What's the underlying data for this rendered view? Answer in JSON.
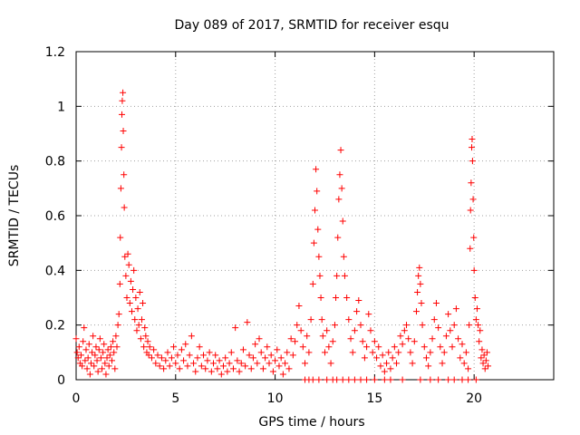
{
  "chart_data": {
    "type": "scatter",
    "title": "Day 089 of 2017, SRMTID for receiver esqu",
    "xlabel": "GPS time / hours",
    "ylabel": "SRMTID / TECUs",
    "xlim": [
      0,
      24
    ],
    "ylim": [
      0,
      1.2
    ],
    "xticks": [
      0,
      5,
      10,
      15,
      20
    ],
    "xtick_labels": [
      "0",
      "5",
      "10",
      "15",
      "20"
    ],
    "yticks": [
      0,
      0.2,
      0.4,
      0.6,
      0.8,
      1.0,
      1.2
    ],
    "ytick_labels": [
      "0",
      "0.2",
      "0.4",
      "0.6",
      "0.8",
      "1",
      "1.2"
    ],
    "grid": true,
    "marker": "+",
    "color": "#ff0000",
    "series": [
      {
        "name": "SRMTID",
        "points": [
          [
            0.0,
            0.15
          ],
          [
            0.05,
            0.1
          ],
          [
            0.1,
            0.08
          ],
          [
            0.15,
            0.12
          ],
          [
            0.2,
            0.06
          ],
          [
            0.25,
            0.09
          ],
          [
            0.3,
            0.05
          ],
          [
            0.35,
            0.14
          ],
          [
            0.4,
            0.19
          ],
          [
            0.45,
            0.07
          ],
          [
            0.5,
            0.11
          ],
          [
            0.55,
            0.04
          ],
          [
            0.6,
            0.08
          ],
          [
            0.65,
            0.13
          ],
          [
            0.7,
            0.02
          ],
          [
            0.75,
            0.06
          ],
          [
            0.8,
            0.1
          ],
          [
            0.85,
            0.16
          ],
          [
            0.9,
            0.05
          ],
          [
            0.95,
            0.09
          ],
          [
            1.0,
            0.12
          ],
          [
            1.05,
            0.07
          ],
          [
            1.1,
            0.03
          ],
          [
            1.15,
            0.11
          ],
          [
            1.2,
            0.15
          ],
          [
            1.25,
            0.08
          ],
          [
            1.3,
            0.04
          ],
          [
            1.35,
            0.1
          ],
          [
            1.4,
            0.13
          ],
          [
            1.45,
            0.06
          ],
          [
            1.5,
            0.02
          ],
          [
            1.55,
            0.08
          ],
          [
            1.6,
            0.11
          ],
          [
            1.65,
            0.05
          ],
          [
            1.7,
            0.09
          ],
          [
            1.75,
            0.12
          ],
          [
            1.8,
            0.07
          ],
          [
            1.85,
            0.14
          ],
          [
            1.9,
            0.1
          ],
          [
            1.95,
            0.04
          ],
          [
            2.0,
            0.16
          ],
          [
            2.05,
            0.12
          ],
          [
            2.1,
            0.2
          ],
          [
            2.15,
            0.24
          ],
          [
            2.2,
            0.35
          ],
          [
            2.22,
            0.52
          ],
          [
            2.25,
            0.7
          ],
          [
            2.28,
            0.85
          ],
          [
            2.3,
            0.97
          ],
          [
            2.32,
            1.02
          ],
          [
            2.35,
            1.05
          ],
          [
            2.37,
            0.91
          ],
          [
            2.4,
            0.75
          ],
          [
            2.42,
            0.63
          ],
          [
            2.45,
            0.45
          ],
          [
            2.5,
            0.38
          ],
          [
            2.55,
            0.3
          ],
          [
            2.6,
            0.46
          ],
          [
            2.65,
            0.42
          ],
          [
            2.7,
            0.28
          ],
          [
            2.75,
            0.36
          ],
          [
            2.8,
            0.25
          ],
          [
            2.85,
            0.33
          ],
          [
            2.9,
            0.4
          ],
          [
            2.95,
            0.22
          ],
          [
            3.0,
            0.3
          ],
          [
            3.05,
            0.18
          ],
          [
            3.1,
            0.26
          ],
          [
            3.15,
            0.2
          ],
          [
            3.2,
            0.32
          ],
          [
            3.25,
            0.15
          ],
          [
            3.3,
            0.22
          ],
          [
            3.35,
            0.28
          ],
          [
            3.4,
            0.12
          ],
          [
            3.45,
            0.19
          ],
          [
            3.5,
            0.16
          ],
          [
            3.55,
            0.1
          ],
          [
            3.6,
            0.14
          ],
          [
            3.65,
            0.09
          ],
          [
            3.7,
            0.12
          ],
          [
            3.8,
            0.08
          ],
          [
            3.9,
            0.11
          ],
          [
            4.0,
            0.06
          ],
          [
            4.1,
            0.09
          ],
          [
            4.2,
            0.05
          ],
          [
            4.3,
            0.08
          ],
          [
            4.4,
            0.04
          ],
          [
            4.5,
            0.07
          ],
          [
            4.6,
            0.1
          ],
          [
            4.7,
            0.05
          ],
          [
            4.8,
            0.08
          ],
          [
            4.9,
            0.12
          ],
          [
            5.0,
            0.06
          ],
          [
            5.1,
            0.09
          ],
          [
            5.2,
            0.04
          ],
          [
            5.3,
            0.11
          ],
          [
            5.4,
            0.07
          ],
          [
            5.5,
            0.13
          ],
          [
            5.6,
            0.05
          ],
          [
            5.7,
            0.09
          ],
          [
            5.8,
            0.16
          ],
          [
            5.9,
            0.06
          ],
          [
            6.0,
            0.03
          ],
          [
            6.1,
            0.08
          ],
          [
            6.2,
            0.12
          ],
          [
            6.3,
            0.05
          ],
          [
            6.4,
            0.09
          ],
          [
            6.5,
            0.04
          ],
          [
            6.6,
            0.07
          ],
          [
            6.7,
            0.1
          ],
          [
            6.8,
            0.03
          ],
          [
            6.9,
            0.06
          ],
          [
            7.0,
            0.09
          ],
          [
            7.1,
            0.04
          ],
          [
            7.2,
            0.07
          ],
          [
            7.3,
            0.02
          ],
          [
            7.4,
            0.05
          ],
          [
            7.5,
            0.08
          ],
          [
            7.6,
            0.03
          ],
          [
            7.7,
            0.06
          ],
          [
            7.8,
            0.1
          ],
          [
            7.9,
            0.04
          ],
          [
            8.0,
            0.19
          ],
          [
            8.1,
            0.07
          ],
          [
            8.2,
            0.03
          ],
          [
            8.3,
            0.06
          ],
          [
            8.4,
            0.11
          ],
          [
            8.5,
            0.05
          ],
          [
            8.6,
            0.21
          ],
          [
            8.7,
            0.09
          ],
          [
            8.8,
            0.04
          ],
          [
            8.9,
            0.08
          ],
          [
            9.0,
            0.13
          ],
          [
            9.1,
            0.06
          ],
          [
            9.2,
            0.15
          ],
          [
            9.3,
            0.1
          ],
          [
            9.4,
            0.04
          ],
          [
            9.5,
            0.08
          ],
          [
            9.6,
            0.12
          ],
          [
            9.7,
            0.06
          ],
          [
            9.8,
            0.09
          ],
          [
            9.9,
            0.03
          ],
          [
            10.0,
            0.07
          ],
          [
            10.1,
            0.11
          ],
          [
            10.2,
            0.05
          ],
          [
            10.3,
            0.08
          ],
          [
            10.4,
            0.02
          ],
          [
            10.5,
            0.06
          ],
          [
            10.6,
            0.1
          ],
          [
            10.7,
            0.04
          ],
          [
            10.8,
            0.15
          ],
          [
            10.9,
            0.09
          ],
          [
            11.0,
            0.14
          ],
          [
            11.1,
            0.2
          ],
          [
            11.2,
            0.27
          ],
          [
            11.3,
            0.18
          ],
          [
            11.4,
            0.12
          ],
          [
            11.5,
            0.06
          ],
          [
            11.6,
            0.16
          ],
          [
            11.7,
            0.1
          ],
          [
            11.8,
            0.22
          ],
          [
            11.9,
            0.35
          ],
          [
            11.95,
            0.5
          ],
          [
            12.0,
            0.62
          ],
          [
            12.05,
            0.77
          ],
          [
            12.1,
            0.69
          ],
          [
            12.15,
            0.55
          ],
          [
            12.2,
            0.45
          ],
          [
            12.25,
            0.38
          ],
          [
            12.3,
            0.3
          ],
          [
            12.35,
            0.22
          ],
          [
            12.4,
            0.16
          ],
          [
            12.5,
            0.1
          ],
          [
            12.6,
            0.18
          ],
          [
            12.7,
            0.12
          ],
          [
            12.8,
            0.06
          ],
          [
            12.9,
            0.14
          ],
          [
            13.0,
            0.2
          ],
          [
            13.05,
            0.3
          ],
          [
            13.1,
            0.38
          ],
          [
            13.15,
            0.52
          ],
          [
            13.2,
            0.66
          ],
          [
            13.25,
            0.75
          ],
          [
            13.3,
            0.84
          ],
          [
            13.35,
            0.7
          ],
          [
            13.4,
            0.58
          ],
          [
            13.45,
            0.45
          ],
          [
            13.5,
            0.38
          ],
          [
            13.6,
            0.3
          ],
          [
            13.7,
            0.22
          ],
          [
            13.8,
            0.15
          ],
          [
            13.9,
            0.1
          ],
          [
            14.0,
            0.18
          ],
          [
            14.1,
            0.25
          ],
          [
            14.2,
            0.29
          ],
          [
            14.3,
            0.2
          ],
          [
            14.4,
            0.14
          ],
          [
            14.5,
            0.08
          ],
          [
            14.6,
            0.12
          ],
          [
            14.7,
            0.24
          ],
          [
            14.8,
            0.18
          ],
          [
            14.9,
            0.1
          ],
          [
            15.0,
            0.14
          ],
          [
            15.1,
            0.08
          ],
          [
            15.2,
            0.12
          ],
          [
            15.3,
            0.05
          ],
          [
            15.4,
            0.09
          ],
          [
            15.5,
            0.03
          ],
          [
            15.6,
            0.06
          ],
          [
            15.7,
            0.1
          ],
          [
            15.8,
            0.04
          ],
          [
            15.9,
            0.08
          ],
          [
            16.0,
            0.12
          ],
          [
            16.1,
            0.06
          ],
          [
            16.2,
            0.1
          ],
          [
            16.3,
            0.16
          ],
          [
            16.4,
            0.13
          ],
          [
            16.5,
            0.18
          ],
          [
            16.6,
            0.2
          ],
          [
            16.7,
            0.15
          ],
          [
            16.8,
            0.1
          ],
          [
            16.9,
            0.06
          ],
          [
            17.0,
            0.14
          ],
          [
            17.1,
            0.25
          ],
          [
            17.15,
            0.32
          ],
          [
            17.2,
            0.38
          ],
          [
            17.25,
            0.41
          ],
          [
            17.3,
            0.35
          ],
          [
            17.35,
            0.28
          ],
          [
            17.4,
            0.2
          ],
          [
            17.5,
            0.12
          ],
          [
            17.6,
            0.08
          ],
          [
            17.7,
            0.05
          ],
          [
            17.8,
            0.1
          ],
          [
            17.9,
            0.15
          ],
          [
            18.0,
            0.22
          ],
          [
            18.1,
            0.28
          ],
          [
            18.2,
            0.19
          ],
          [
            18.3,
            0.12
          ],
          [
            18.4,
            0.06
          ],
          [
            18.5,
            0.1
          ],
          [
            18.6,
            0.16
          ],
          [
            18.7,
            0.24
          ],
          [
            18.8,
            0.18
          ],
          [
            18.9,
            0.12
          ],
          [
            19.0,
            0.2
          ],
          [
            19.1,
            0.26
          ],
          [
            19.2,
            0.15
          ],
          [
            19.3,
            0.08
          ],
          [
            19.4,
            0.13
          ],
          [
            19.5,
            0.06
          ],
          [
            19.6,
            0.1
          ],
          [
            19.7,
            0.04
          ],
          [
            19.75,
            0.2
          ],
          [
            19.8,
            0.48
          ],
          [
            19.82,
            0.62
          ],
          [
            19.85,
            0.72
          ],
          [
            19.88,
            0.85
          ],
          [
            19.9,
            0.88
          ],
          [
            19.92,
            0.8
          ],
          [
            19.95,
            0.66
          ],
          [
            19.98,
            0.52
          ],
          [
            20.0,
            0.4
          ],
          [
            20.05,
            0.3
          ],
          [
            20.1,
            0.22
          ],
          [
            20.15,
            0.26
          ],
          [
            20.2,
            0.2
          ],
          [
            20.25,
            0.14
          ],
          [
            20.3,
            0.18
          ],
          [
            20.35,
            0.08
          ],
          [
            20.4,
            0.11
          ],
          [
            20.45,
            0.06
          ],
          [
            20.5,
            0.09
          ],
          [
            20.55,
            0.04
          ],
          [
            20.6,
            0.07
          ],
          [
            20.65,
            0.1
          ],
          [
            20.7,
            0.05
          ],
          [
            11.5,
            0.0
          ],
          [
            11.7,
            0.0
          ],
          [
            11.9,
            0.0
          ],
          [
            12.2,
            0.0
          ],
          [
            12.6,
            0.0
          ],
          [
            12.9,
            0.0
          ],
          [
            13.1,
            0.0
          ],
          [
            13.4,
            0.0
          ],
          [
            13.7,
            0.0
          ],
          [
            14.0,
            0.0
          ],
          [
            14.3,
            0.0
          ],
          [
            14.6,
            0.0
          ],
          [
            15.0,
            0.0
          ],
          [
            15.5,
            0.0
          ],
          [
            15.8,
            0.0
          ],
          [
            16.4,
            0.0
          ],
          [
            17.3,
            0.0
          ],
          [
            17.8,
            0.0
          ],
          [
            18.2,
            0.0
          ],
          [
            18.7,
            0.0
          ],
          [
            19.0,
            0.0
          ],
          [
            19.4,
            0.0
          ],
          [
            19.7,
            0.0
          ],
          [
            20.1,
            0.0
          ]
        ]
      }
    ]
  }
}
